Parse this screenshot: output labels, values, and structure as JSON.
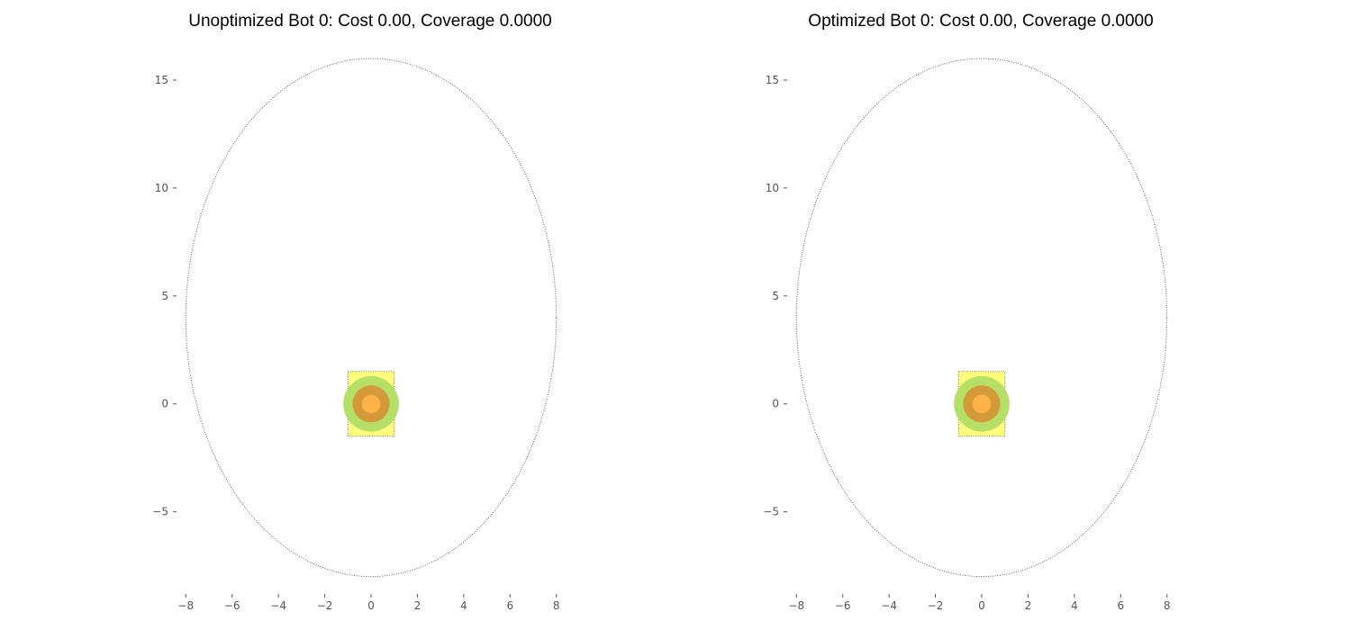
{
  "chart_data": [
    {
      "type": "scatter",
      "title": "Unoptimized Bot 0: Cost 0.00, Coverage 0.0000",
      "xlabel": "",
      "ylabel": "",
      "xlim": [
        -8.4,
        8.4
      ],
      "ylim": [
        -8.6,
        16.5
      ],
      "xticks": [
        -8,
        -6,
        -4,
        -2,
        0,
        2,
        4,
        6,
        8
      ],
      "yticks": [
        -5,
        0,
        5,
        10,
        15
      ],
      "grid": false,
      "boundary_ellipse": {
        "cx": 0,
        "cy": 4,
        "rx": 8,
        "ry": 12,
        "style": "dotted",
        "color": "#555555"
      },
      "rectangle": {
        "x0": -1,
        "x1": 1,
        "y0": -1.5,
        "y1": 1.5,
        "color": "#ffff66"
      },
      "rings": [
        {
          "cx": 0,
          "cy": 0,
          "r": 1.2,
          "color": "#b5df66"
        },
        {
          "cx": 0,
          "cy": 0,
          "r": 0.8,
          "color": "#d49a3a"
        },
        {
          "cx": 0,
          "cy": 0,
          "r": 0.4,
          "color": "#ffb347"
        }
      ]
    },
    {
      "type": "scatter",
      "title": "Optimized Bot 0: Cost 0.00, Coverage 0.0000",
      "xlabel": "",
      "ylabel": "",
      "xlim": [
        -8.4,
        8.4
      ],
      "ylim": [
        -8.6,
        16.5
      ],
      "xticks": [
        -8,
        -6,
        -4,
        -2,
        0,
        2,
        4,
        6,
        8
      ],
      "yticks": [
        -5,
        0,
        5,
        10,
        15
      ],
      "grid": false,
      "boundary_ellipse": {
        "cx": 0,
        "cy": 4,
        "rx": 8,
        "ry": 12,
        "style": "dotted",
        "color": "#555555"
      },
      "rectangle": {
        "x0": -1,
        "x1": 1,
        "y0": -1.5,
        "y1": 1.5,
        "color": "#ffff66"
      },
      "rings": [
        {
          "cx": 0,
          "cy": 0,
          "r": 1.2,
          "color": "#b5df66"
        },
        {
          "cx": 0,
          "cy": 0,
          "r": 0.8,
          "color": "#d49a3a"
        },
        {
          "cx": 0,
          "cy": 0,
          "r": 0.4,
          "color": "#ffb347"
        }
      ]
    }
  ]
}
